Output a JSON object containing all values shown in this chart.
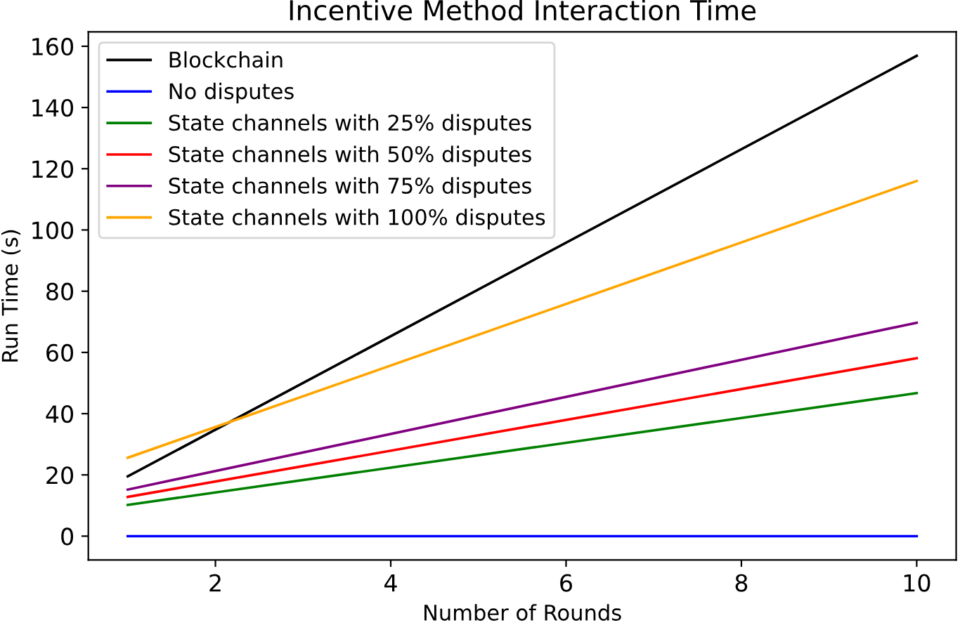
{
  "chart_data": {
    "type": "line",
    "title": "Incentive Method Interaction Time",
    "xlabel": "Number of Rounds",
    "ylabel": "Run Time (s)",
    "x": [
      1,
      10
    ],
    "series": [
      {
        "name": "Blockchain",
        "color": "#000000",
        "values": [
          19.5,
          156.9
        ]
      },
      {
        "name": "No disputes",
        "color": "#0000ff",
        "values": [
          0,
          0
        ]
      },
      {
        "name": "State channels with 25% disputes",
        "color": "#008000",
        "values": [
          10.2,
          46.7
        ]
      },
      {
        "name": "State channels with 50% disputes",
        "color": "#ff0000",
        "values": [
          12.8,
          58.1
        ]
      },
      {
        "name": "State channels with 75% disputes",
        "color": "#800080",
        "values": [
          15.2,
          69.7
        ]
      },
      {
        "name": "State channels with 100% disputes",
        "color": "#ffa500",
        "values": [
          25.6,
          116.0
        ]
      }
    ],
    "xlim": [
      0.55,
      10.45
    ],
    "ylim": [
      -7.8,
      164.7
    ],
    "xticks": [
      2,
      4,
      6,
      8,
      10
    ],
    "yticks": [
      0,
      20,
      40,
      60,
      80,
      100,
      120,
      140,
      160
    ],
    "grid": false,
    "legend": "top left",
    "marker": "none",
    "line_style": "solid"
  }
}
